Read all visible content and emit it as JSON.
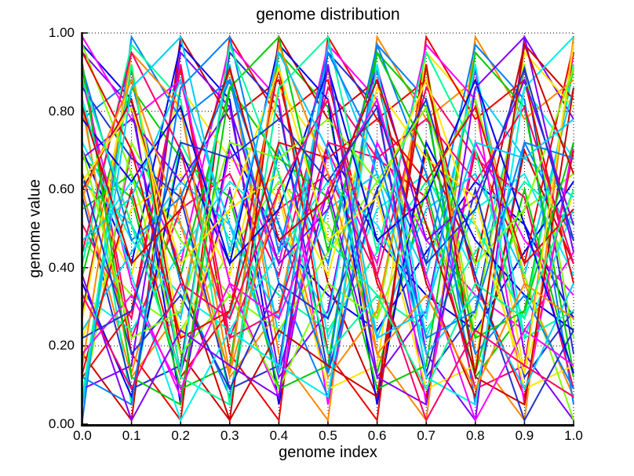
{
  "chart_data": {
    "type": "line",
    "title": "genome distribution",
    "xlabel": "genome index",
    "ylabel": "genome value",
    "xlim": [
      0,
      1
    ],
    "ylim": [
      0,
      1
    ],
    "x_ticks": [
      "0.0",
      "0.1",
      "0.2",
      "0.3",
      "0.4",
      "0.5",
      "0.6",
      "0.7",
      "0.8",
      "0.9",
      "1.0"
    ],
    "y_ticks": [
      "0.00",
      "0.20",
      "0.40",
      "0.60",
      "0.80",
      "1.00"
    ],
    "grid": "dotted",
    "grid_color": "#000000",
    "axis_color": "#000000",
    "background": "#ffffff",
    "line_width": 2,
    "x": [
      0,
      0.1,
      0.2,
      0.3,
      0.4,
      0.5,
      0.6,
      0.7,
      0.8,
      0.9,
      1.0
    ],
    "palette": [
      "#0000ee",
      "#ee0000",
      "#00cc00",
      "#00eeee",
      "#ff00ff",
      "#ff8800",
      "#ffe600",
      "#80ff00",
      "#0080ff",
      "#8000ff",
      "#ff0066",
      "#00ff99",
      "#cc0000",
      "#2233cc",
      "#00ccff"
    ],
    "series": [
      {
        "values": [
          0.97,
          0.83,
          0.05,
          0.72,
          0.47,
          0.33,
          0.24,
          0.44,
          0.62,
          0.51,
          0.27
        ]
      },
      {
        "values": [
          0.91,
          0.18,
          0.01,
          0.99,
          0.78,
          0.88,
          0.36,
          0.07,
          0.7,
          0.41,
          0.97
        ]
      },
      {
        "values": [
          0.68,
          0.58,
          0.09,
          0.15,
          0.95,
          0.81,
          0.13,
          0.6,
          0.12,
          0.29,
          0.91
        ]
      },
      {
        "values": [
          0.44,
          0.62,
          0.51,
          0.27,
          0.92,
          0.22,
          0.55,
          0.64,
          0.38,
          0.86,
          0.68
        ]
      },
      {
        "values": [
          0.07,
          0.7,
          0.41,
          0.97,
          0.83,
          0.05,
          0.72,
          0.47,
          0.33,
          0.24,
          0.44
        ]
      },
      {
        "values": [
          0.6,
          0.12,
          0.29,
          0.91,
          0.18,
          0.01,
          0.99,
          0.78,
          0.88,
          0.36,
          0.07
        ]
      },
      {
        "values": [
          0.64,
          0.38,
          0.86,
          0.68,
          0.58,
          0.09,
          0.15,
          0.95,
          0.81,
          0.13,
          0.6
        ]
      },
      {
        "values": [
          0.47,
          0.33,
          0.24,
          0.44,
          0.62,
          0.51,
          0.27,
          0.92,
          0.22,
          0.55,
          0.64
        ]
      },
      {
        "values": [
          0.78,
          0.88,
          0.36,
          0.07,
          0.7,
          0.41,
          0.97,
          0.83,
          0.05,
          0.72,
          0.47
        ]
      },
      {
        "values": [
          0.95,
          0.81,
          0.13,
          0.6,
          0.12,
          0.29,
          0.91,
          0.18,
          0.01,
          0.99,
          0.78
        ]
      },
      {
        "values": [
          0.92,
          0.22,
          0.55,
          0.64,
          0.38,
          0.86,
          0.68,
          0.58,
          0.09,
          0.15,
          0.95
        ]
      },
      {
        "values": [
          0.83,
          0.05,
          0.72,
          0.47,
          0.33,
          0.24,
          0.44,
          0.62,
          0.51,
          0.27,
          0.92
        ]
      },
      {
        "values": [
          0.18,
          0.01,
          0.99,
          0.78,
          0.88,
          0.36,
          0.07,
          0.7,
          0.41,
          0.97,
          0.83
        ]
      },
      {
        "values": [
          0.58,
          0.09,
          0.15,
          0.95,
          0.81,
          0.13,
          0.6,
          0.12,
          0.29,
          0.91,
          0.18
        ]
      },
      {
        "values": [
          0.62,
          0.51,
          0.27,
          0.92,
          0.22,
          0.55,
          0.64,
          0.38,
          0.86,
          0.68,
          0.58
        ]
      },
      {
        "values": [
          0.7,
          0.41,
          0.97,
          0.83,
          0.05,
          0.72,
          0.47,
          0.33,
          0.24,
          0.44,
          0.62
        ]
      },
      {
        "values": [
          0.12,
          0.29,
          0.91,
          0.18,
          0.01,
          0.99,
          0.78,
          0.88,
          0.36,
          0.07,
          0.7
        ]
      },
      {
        "values": [
          0.38,
          0.86,
          0.68,
          0.58,
          0.09,
          0.15,
          0.95,
          0.81,
          0.13,
          0.6,
          0.12
        ]
      },
      {
        "values": [
          0.33,
          0.24,
          0.44,
          0.62,
          0.51,
          0.27,
          0.92,
          0.22,
          0.55,
          0.64,
          0.38
        ]
      },
      {
        "values": [
          0.88,
          0.36,
          0.07,
          0.7,
          0.41,
          0.97,
          0.83,
          0.05,
          0.72,
          0.47,
          0.33
        ]
      },
      {
        "values": [
          0.81,
          0.13,
          0.6,
          0.12,
          0.29,
          0.91,
          0.18,
          0.01,
          0.99,
          0.78,
          0.88
        ]
      },
      {
        "values": [
          0.22,
          0.55,
          0.64,
          0.38,
          0.86,
          0.68,
          0.58,
          0.09,
          0.15,
          0.95,
          0.81
        ]
      },
      {
        "values": [
          0.05,
          0.72,
          0.47,
          0.33,
          0.24,
          0.44,
          0.62,
          0.51,
          0.27,
          0.92,
          0.22
        ]
      },
      {
        "values": [
          0.01,
          0.99,
          0.78,
          0.88,
          0.36,
          0.07,
          0.7,
          0.41,
          0.97,
          0.83,
          0.05
        ]
      },
      {
        "values": [
          0.09,
          0.15,
          0.95,
          0.81,
          0.13,
          0.6,
          0.12,
          0.29,
          0.91,
          0.18,
          0.01
        ]
      },
      {
        "values": [
          0.51,
          0.27,
          0.92,
          0.22,
          0.55,
          0.64,
          0.38,
          0.86,
          0.68,
          0.58,
          0.09
        ]
      },
      {
        "values": [
          0.41,
          0.97,
          0.83,
          0.05,
          0.72,
          0.47,
          0.33,
          0.24,
          0.44,
          0.62,
          0.51
        ]
      },
      {
        "values": [
          0.29,
          0.91,
          0.18,
          0.01,
          0.99,
          0.78,
          0.88,
          0.36,
          0.07,
          0.7,
          0.41
        ]
      },
      {
        "values": [
          0.86,
          0.68,
          0.58,
          0.09,
          0.15,
          0.95,
          0.81,
          0.13,
          0.6,
          0.12,
          0.29
        ]
      },
      {
        "values": [
          0.24,
          0.44,
          0.62,
          0.51,
          0.27,
          0.92,
          0.22,
          0.55,
          0.64,
          0.38,
          0.86
        ]
      },
      {
        "values": [
          0.36,
          0.07,
          0.7,
          0.41,
          0.97,
          0.83,
          0.05,
          0.72,
          0.47,
          0.33,
          0.24
        ]
      },
      {
        "values": [
          0.13,
          0.6,
          0.12,
          0.29,
          0.91,
          0.18,
          0.01,
          0.99,
          0.78,
          0.88,
          0.36
        ]
      },
      {
        "values": [
          0.55,
          0.64,
          0.38,
          0.86,
          0.68,
          0.58,
          0.09,
          0.15,
          0.95,
          0.81,
          0.13
        ]
      },
      {
        "values": [
          0.72,
          0.47,
          0.33,
          0.24,
          0.44,
          0.62,
          0.51,
          0.27,
          0.92,
          0.22,
          0.55
        ]
      },
      {
        "values": [
          0.99,
          0.78,
          0.88,
          0.36,
          0.07,
          0.7,
          0.41,
          0.97,
          0.83,
          0.05,
          0.72
        ]
      },
      {
        "values": [
          0.15,
          0.95,
          0.81,
          0.13,
          0.6,
          0.12,
          0.29,
          0.91,
          0.18,
          0.01,
          0.99
        ]
      },
      {
        "values": [
          0.27,
          0.92,
          0.22,
          0.55,
          0.64,
          0.38,
          0.86,
          0.68,
          0.58,
          0.09,
          0.15
        ]
      },
      {
        "values": [
          0.97,
          0.64,
          0.18,
          0.33,
          0.09,
          0.36,
          0.27,
          0.6,
          0.83,
          0.38,
          0.01
        ]
      },
      {
        "values": [
          0.91,
          0.47,
          0.58,
          0.88,
          0.51,
          0.13,
          0.97,
          0.64,
          0.18,
          0.33,
          0.09
        ]
      },
      {
        "values": [
          0.68,
          0.78,
          0.62,
          0.81,
          0.41,
          0.55,
          0.91,
          0.47,
          0.58,
          0.88,
          0.51
        ]
      },
      {
        "values": [
          0.44,
          0.95,
          0.7,
          0.22,
          0.29,
          0.72,
          0.68,
          0.78,
          0.62,
          0.81,
          0.41
        ]
      },
      {
        "values": [
          0.07,
          0.92,
          0.12,
          0.05,
          0.86,
          0.99,
          0.44,
          0.95,
          0.7,
          0.22,
          0.29
        ]
      },
      {
        "values": [
          0.6,
          0.83,
          0.38,
          0.01,
          0.24,
          0.15,
          0.07,
          0.92,
          0.12,
          0.05,
          0.86
        ]
      },
      {
        "values": [
          0.64,
          0.18,
          0.33,
          0.09,
          0.36,
          0.27,
          0.6,
          0.83,
          0.38,
          0.01,
          0.24
        ]
      },
      {
        "values": [
          0.47,
          0.58,
          0.88,
          0.51,
          0.13,
          0.97,
          0.64,
          0.18,
          0.33,
          0.09,
          0.36
        ]
      },
      {
        "values": [
          0.78,
          0.62,
          0.81,
          0.41,
          0.55,
          0.91,
          0.47,
          0.58,
          0.88,
          0.51,
          0.13
        ]
      },
      {
        "values": [
          0.95,
          0.7,
          0.22,
          0.29,
          0.72,
          0.68,
          0.78,
          0.62,
          0.81,
          0.41,
          0.55
        ]
      },
      {
        "values": [
          0.92,
          0.12,
          0.05,
          0.86,
          0.99,
          0.44,
          0.95,
          0.7,
          0.22,
          0.29,
          0.72
        ]
      },
      {
        "values": [
          0.83,
          0.38,
          0.01,
          0.24,
          0.15,
          0.07,
          0.92,
          0.12,
          0.05,
          0.86,
          0.99
        ]
      },
      {
        "values": [
          0.18,
          0.33,
          0.09,
          0.36,
          0.27,
          0.6,
          0.83,
          0.38,
          0.01,
          0.24,
          0.15
        ]
      },
      {
        "values": [
          0.58,
          0.88,
          0.51,
          0.13,
          0.97,
          0.64,
          0.18,
          0.33,
          0.09,
          0.36,
          0.27
        ]
      },
      {
        "values": [
          0.62,
          0.81,
          0.41,
          0.55,
          0.91,
          0.47,
          0.58,
          0.88,
          0.51,
          0.13,
          0.97
        ]
      },
      {
        "values": [
          0.7,
          0.22,
          0.29,
          0.72,
          0.68,
          0.78,
          0.62,
          0.81,
          0.41,
          0.55,
          0.91
        ]
      },
      {
        "values": [
          0.12,
          0.05,
          0.86,
          0.99,
          0.44,
          0.95,
          0.7,
          0.22,
          0.29,
          0.72,
          0.68
        ]
      },
      {
        "values": [
          0.38,
          0.01,
          0.24,
          0.15,
          0.07,
          0.92,
          0.12,
          0.05,
          0.86,
          0.99,
          0.44
        ]
      },
      {
        "values": [
          0.33,
          0.09,
          0.36,
          0.27,
          0.6,
          0.83,
          0.38,
          0.01,
          0.24,
          0.15,
          0.07
        ]
      },
      {
        "values": [
          0.88,
          0.51,
          0.13,
          0.97,
          0.64,
          0.18,
          0.33,
          0.09,
          0.36,
          0.27,
          0.6
        ]
      },
      {
        "values": [
          0.81,
          0.41,
          0.55,
          0.91,
          0.47,
          0.58,
          0.88,
          0.51,
          0.13,
          0.97,
          0.64
        ]
      },
      {
        "values": [
          0.22,
          0.29,
          0.72,
          0.68,
          0.78,
          0.62,
          0.81,
          0.41,
          0.55,
          0.91,
          0.47
        ]
      },
      {
        "values": [
          0.05,
          0.86,
          0.99,
          0.44,
          0.95,
          0.7,
          0.22,
          0.29,
          0.72,
          0.68,
          0.78
        ]
      }
    ]
  }
}
